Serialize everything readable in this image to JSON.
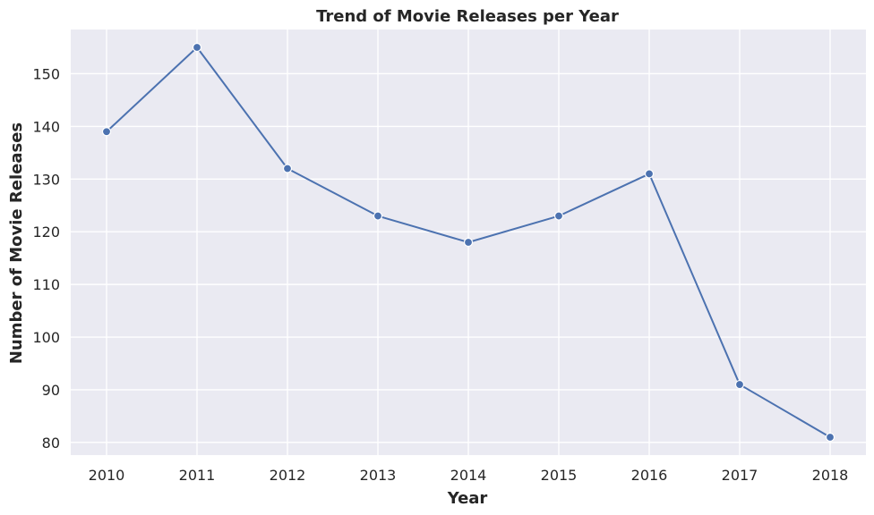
{
  "chart_data": {
    "type": "line",
    "title": "Trend of Movie Releases per Year",
    "xlabel": "Year",
    "ylabel": "Number of Movie Releases",
    "x": [
      2010,
      2011,
      2012,
      2013,
      2014,
      2015,
      2016,
      2017,
      2018
    ],
    "x_ticks": [
      "2010",
      "2011",
      "2012",
      "2013",
      "2014",
      "2015",
      "2016",
      "2017",
      "2018"
    ],
    "y_ticks": [
      80,
      90,
      100,
      110,
      120,
      130,
      140,
      150
    ],
    "ylim": [
      77.6,
      158.4
    ],
    "grid": true,
    "series": [
      {
        "values": [
          139,
          155,
          132,
          123,
          118,
          123,
          131,
          91,
          81
        ],
        "color": "#4c72b0",
        "marker": "circle"
      }
    ],
    "background_color": "#eaeaf2",
    "grid_color": "#ffffff"
  }
}
